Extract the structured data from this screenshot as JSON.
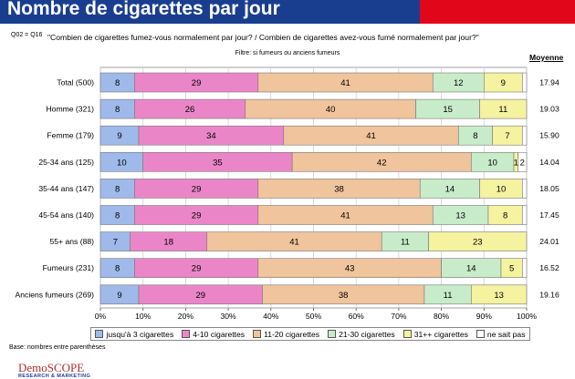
{
  "header": {
    "title": "Nombre de cigarettes par jour",
    "question_ref": "Q02 = Q16",
    "question": "\"Combien de cigarettes fumez-vous normalement par jour? / Combien de cigarettes avez-vous fumé normalement par jour?\"",
    "filter": "Filtre: si fumeurs ou anciens fumeurs",
    "moyenne_label": "Moyenne"
  },
  "footer": {
    "base_note": "Base: nombres entre parenthèses",
    "logo_main": "DemoSCOPE",
    "logo_sub": "RESEARCH & MARKETING"
  },
  "colors": {
    "banner_blue": "#1a3e8f",
    "banner_red": "#e2061b"
  },
  "chart_data": {
    "type": "bar",
    "orientation": "horizontal",
    "stacked": true,
    "percent_stacked": true,
    "categories": [
      "Total (500)",
      "Homme (321)",
      "Femme (179)",
      "25-34 ans (125)",
      "35-44 ans (147)",
      "45-54 ans (140)",
      "55+ ans (88)",
      "Fumeurs (231)",
      "Anciens fumeurs (269)"
    ],
    "series": [
      {
        "name": "jusqu'à 3 cigarettes",
        "color": "#9fb9ea",
        "values": [
          8,
          8,
          9,
          10,
          8,
          8,
          7,
          8,
          9
        ],
        "labels": [
          "8",
          "8",
          "9",
          "10",
          "8",
          "8",
          "7",
          "8",
          "9"
        ]
      },
      {
        "name": "4-10 cigarettes",
        "color": "#ea86c8",
        "values": [
          29,
          26,
          34,
          35,
          29,
          29,
          18,
          29,
          29
        ],
        "labels": [
          "29",
          "26",
          "34",
          "35",
          "29",
          "29",
          "18",
          "29",
          "29"
        ]
      },
      {
        "name": "11-20 cigarettes",
        "color": "#f0c49c",
        "values": [
          41,
          40,
          41,
          42,
          38,
          41,
          41,
          43,
          38
        ],
        "labels": [
          "41",
          "40",
          "41",
          "42",
          "38",
          "41",
          "41",
          "43",
          "38"
        ]
      },
      {
        "name": "21-30 cigarettes",
        "color": "#c8ecc9",
        "values": [
          12,
          15,
          8,
          10,
          14,
          13,
          11,
          14,
          11
        ],
        "labels": [
          "12",
          "15",
          "8",
          "10",
          "14",
          "13",
          "11",
          "14",
          "11"
        ]
      },
      {
        "name": "31++ cigarettes",
        "color": "#f5f2a0",
        "values": [
          9,
          11,
          7,
          1,
          10,
          8,
          23,
          5,
          13
        ],
        "labels": [
          "9",
          "11",
          "7",
          "1",
          "10",
          "8",
          "23",
          "5",
          "13"
        ]
      },
      {
        "name": "ne sait pas",
        "color": "#ffffff",
        "values": [
          1,
          0,
          1,
          2,
          1,
          1,
          0,
          1,
          0
        ],
        "labels": [
          "",
          "",
          "",
          "2",
          "",
          "",
          "",
          "",
          ""
        ]
      }
    ],
    "moyenne": [
      "17.94",
      "19.03",
      "15.90",
      "14.04",
      "18.05",
      "17.45",
      "24.01",
      "16.52",
      "19.16"
    ],
    "xlim": [
      0,
      100
    ],
    "x_ticks": [
      "0%",
      "10%",
      "20%",
      "30%",
      "40%",
      "50%",
      "60%",
      "70%",
      "80%",
      "90%",
      "100%"
    ],
    "grid": true,
    "legend_position": "bottom"
  }
}
